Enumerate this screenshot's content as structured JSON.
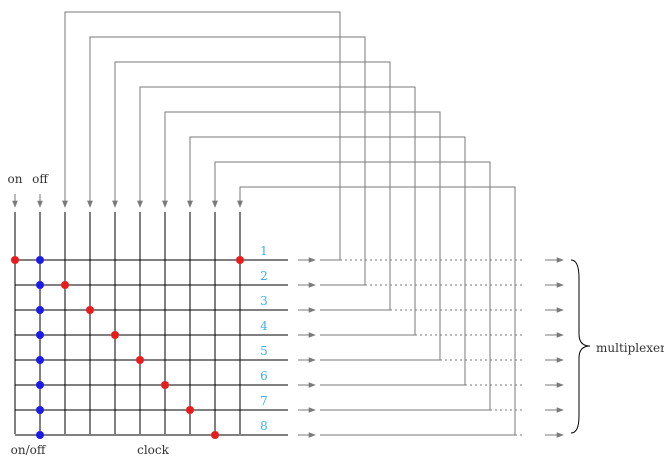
{
  "labels": {
    "on": "on",
    "off": "off",
    "onoff": "on/off",
    "clock": "clock",
    "multiplexer": "multiplexer"
  },
  "channels": [
    "1",
    "2",
    "3",
    "4",
    "5",
    "6",
    "7",
    "8"
  ],
  "colors": {
    "grid": "#000000",
    "on_dot": "#e81c1c",
    "off_dot": "#1c1ce8",
    "feedback": "#7a7a7a",
    "channel_label": "#3fb0e8",
    "text": "#333333"
  }
}
